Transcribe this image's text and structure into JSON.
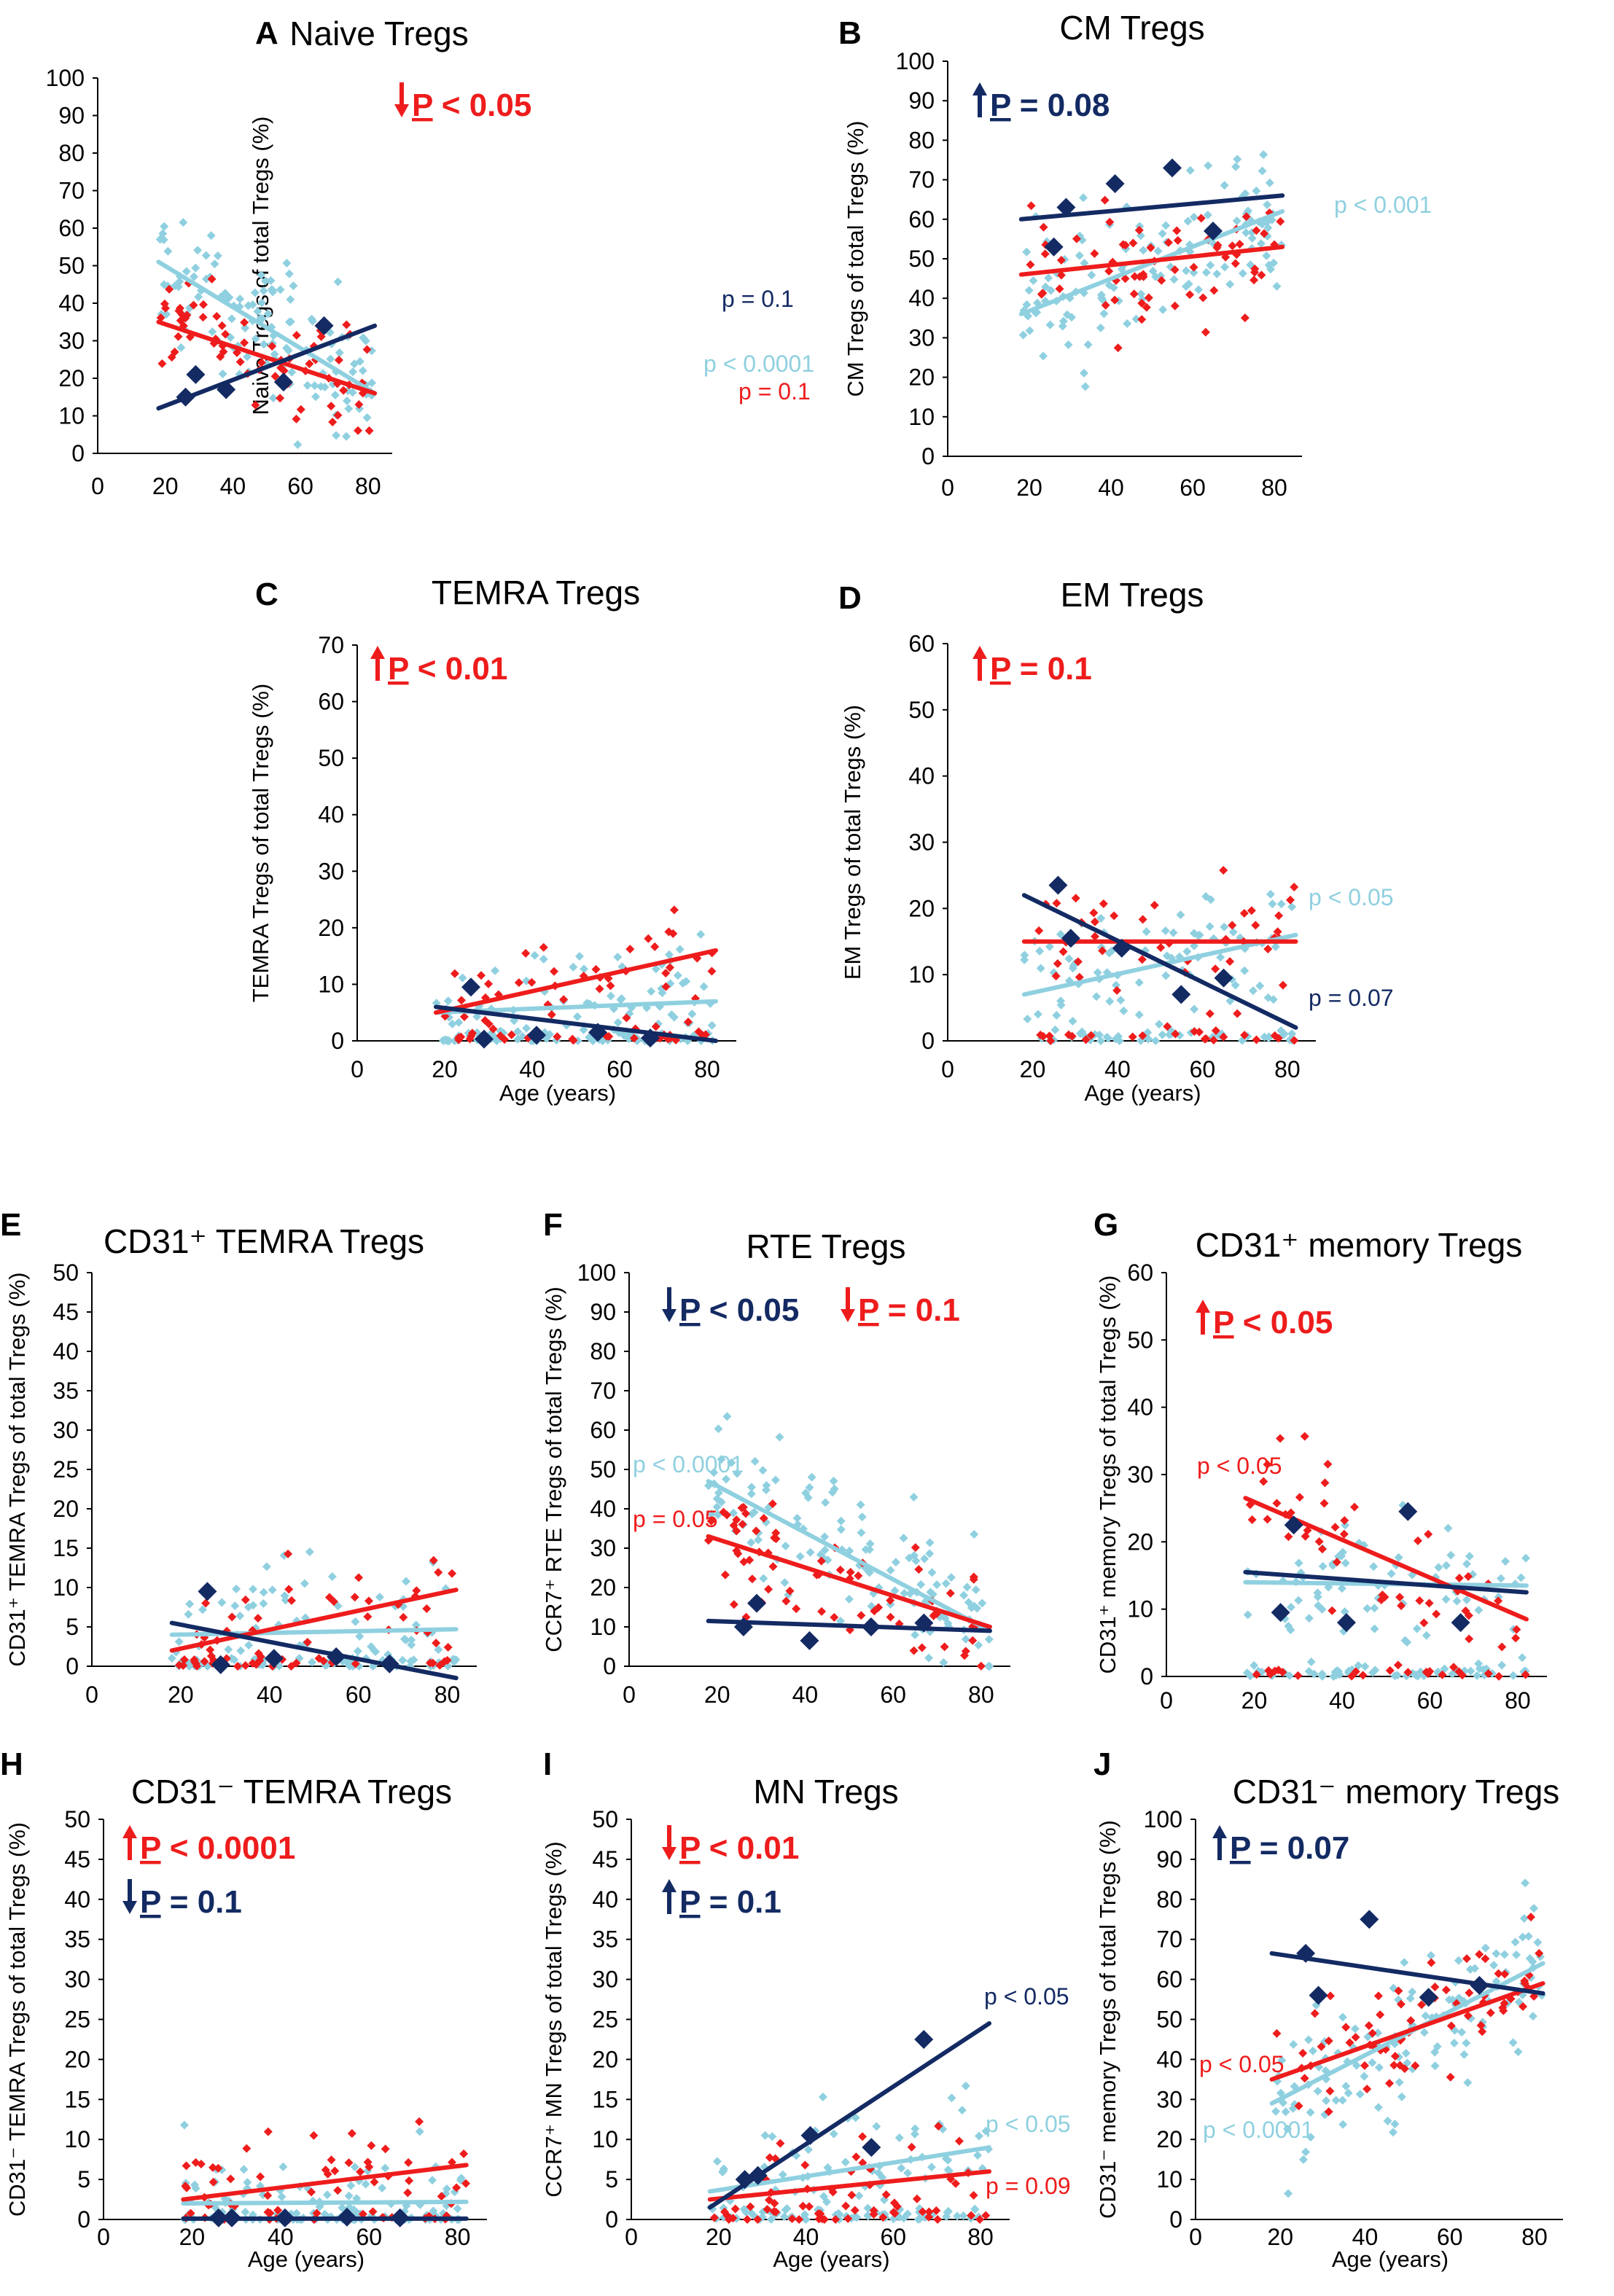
{
  "colors": {
    "red": "#ee1c1c",
    "light": "#8fd0e0",
    "navy": "#132a63",
    "axis": "#000000"
  },
  "chart_data": [
    {
      "id": "A",
      "letter": "A",
      "type": "scatter",
      "title": "Naive Tregs",
      "title_html": "",
      "ylabel": "Naive Tregs of total Tregs (%)",
      "xlabel": "",
      "xlim": [
        0,
        85
      ],
      "ylim": [
        0,
        100
      ],
      "yticks": [
        0,
        10,
        20,
        30,
        40,
        50,
        60,
        70,
        80,
        90,
        100
      ],
      "xticks": [
        0,
        20,
        40,
        60,
        80
      ],
      "series": [
        {
          "name": "navy",
          "marker": "large-diamond",
          "points": [
            [
              26,
              15
            ],
            [
              29,
              21
            ],
            [
              38,
              17
            ],
            [
              55,
              19
            ],
            [
              67,
              34
            ]
          ]
        }
      ],
      "trendlines": [
        {
          "color": "light",
          "x": [
            18,
            82
          ],
          "y": [
            51,
            16
          ]
        },
        {
          "color": "red",
          "x": [
            18,
            82
          ],
          "y": [
            35,
            16
          ]
        },
        {
          "color": "navy",
          "x": [
            18,
            82
          ],
          "y": [
            12,
            34
          ]
        }
      ],
      "annotations": [
        {
          "arrow": "down",
          "color": "red",
          "p_letter": "P",
          "rest": " < 0.05",
          "style": "big"
        },
        {
          "text": "p = 0.1",
          "color": "navy",
          "style": "small"
        },
        {
          "text": "p < 0.0001",
          "color": "light",
          "style": "small"
        },
        {
          "text": "p = 0.1",
          "color": "red",
          "style": "small"
        }
      ]
    },
    {
      "id": "B",
      "letter": "B",
      "type": "scatter",
      "title": "CM Tregs",
      "title_html": "",
      "ylabel": "CM Tregs of total Tregs (%)",
      "xlabel": "",
      "xlim": [
        0,
        85
      ],
      "ylim": [
        0,
        100
      ],
      "yticks": [
        0,
        10,
        20,
        30,
        40,
        50,
        60,
        70,
        80,
        90,
        100
      ],
      "xticks": [
        0,
        20,
        40,
        60,
        80
      ],
      "series": [
        {
          "name": "navy",
          "marker": "large-diamond",
          "points": [
            [
              26,
              53
            ],
            [
              29,
              63
            ],
            [
              41,
              69
            ],
            [
              55,
              73
            ],
            [
              65,
              57
            ]
          ]
        }
      ],
      "trendlines": [
        {
          "color": "light",
          "x": [
            18,
            82
          ],
          "y": [
            36,
            62
          ]
        },
        {
          "color": "red",
          "x": [
            18,
            82
          ],
          "y": [
            46,
            53
          ]
        },
        {
          "color": "navy",
          "x": [
            18,
            82
          ],
          "y": [
            60,
            66
          ]
        }
      ],
      "annotations": [
        {
          "arrow": "up",
          "color": "navy",
          "p_letter": "P",
          "rest": " = 0.08",
          "style": "big"
        },
        {
          "text": "p < 0.001",
          "color": "light",
          "style": "small"
        }
      ]
    },
    {
      "id": "C",
      "letter": "C",
      "type": "scatter",
      "title": "TEMRA Tregs",
      "title_html": "",
      "ylabel": "TEMRA Tregs of total Tregs (%)",
      "xlabel": "Age (years)",
      "xlim": [
        0,
        85
      ],
      "ylim": [
        0,
        70
      ],
      "yticks": [
        0,
        10,
        20,
        30,
        40,
        50,
        60,
        70
      ],
      "xticks": [
        0,
        20,
        40,
        60,
        80
      ],
      "series": [
        {
          "name": "navy",
          "marker": "large-diamond",
          "points": [
            [
              26,
              9.5
            ],
            [
              29,
              0.3
            ],
            [
              41,
              1
            ],
            [
              55,
              1.5
            ],
            [
              67,
              0.5
            ]
          ]
        }
      ],
      "trendlines": [
        {
          "color": "light",
          "x": [
            18,
            82
          ],
          "y": [
            5,
            7
          ]
        },
        {
          "color": "red",
          "x": [
            18,
            82
          ],
          "y": [
            5,
            16
          ]
        },
        {
          "color": "navy",
          "x": [
            18,
            82
          ],
          "y": [
            6,
            0
          ]
        }
      ],
      "annotations": [
        {
          "arrow": "up",
          "color": "red",
          "p_letter": "P",
          "rest": " < 0.01",
          "style": "big"
        }
      ]
    },
    {
      "id": "D",
      "letter": "D",
      "type": "scatter",
      "title": "EM Tregs",
      "title_html": "",
      "ylabel": "EM Tregs of total Tregs (%)",
      "xlabel": "Age (years)",
      "xlim": [
        0,
        85
      ],
      "ylim": [
        0,
        60
      ],
      "yticks": [
        0,
        10,
        20,
        30,
        40,
        50,
        60
      ],
      "xticks": [
        0,
        20,
        40,
        60,
        80
      ],
      "series": [
        {
          "name": "navy",
          "marker": "large-diamond",
          "points": [
            [
              26,
              23.5
            ],
            [
              29,
              15.5
            ],
            [
              41,
              14
            ],
            [
              55,
              7
            ],
            [
              65,
              9.5
            ]
          ]
        }
      ],
      "trendlines": [
        {
          "color": "light",
          "x": [
            18,
            82
          ],
          "y": [
            7,
            16
          ]
        },
        {
          "color": "red",
          "x": [
            18,
            82
          ],
          "y": [
            15,
            15
          ]
        },
        {
          "color": "navy",
          "x": [
            18,
            82
          ],
          "y": [
            22,
            2
          ]
        }
      ],
      "annotations": [
        {
          "arrow": "up",
          "color": "red",
          "p_letter": "P",
          "rest": " = 0.1",
          "style": "big"
        },
        {
          "text": "p < 0.05",
          "color": "light",
          "style": "small"
        },
        {
          "text": "p = 0.07",
          "color": "navy",
          "style": "small"
        }
      ]
    },
    {
      "id": "E",
      "letter": "E",
      "type": "scatter",
      "title": "CD31⁺ TEMRA Tregs",
      "title_html": "",
      "ylabel": "CD31⁺ TEMRA Tregs of total Tregs (%)",
      "xlabel": "",
      "xlim": [
        0,
        85
      ],
      "ylim": [
        0,
        50
      ],
      "yticks": [
        0,
        5,
        10,
        15,
        20,
        25,
        30,
        35,
        40,
        45,
        50
      ],
      "xticks": [
        0,
        20,
        40,
        60,
        80
      ],
      "series": [
        {
          "name": "navy",
          "marker": "large-diamond",
          "points": [
            [
              26,
              9.5
            ],
            [
              29,
              0.2
            ],
            [
              41,
              1
            ],
            [
              55,
              1.2
            ],
            [
              67,
              0.3
            ]
          ]
        }
      ],
      "trendlines": [
        {
          "color": "light",
          "x": [
            18,
            82
          ],
          "y": [
            4,
            4.7
          ]
        },
        {
          "color": "red",
          "x": [
            18,
            82
          ],
          "y": [
            2,
            9.7
          ]
        },
        {
          "color": "navy",
          "x": [
            18,
            82
          ],
          "y": [
            5.5,
            -1.5
          ]
        }
      ],
      "annotations": []
    },
    {
      "id": "F",
      "letter": "F",
      "type": "scatter",
      "title": "RTE Tregs",
      "title_html": "",
      "ylabel": "CCR7⁺ RTE Tregs of total Tregs (%)",
      "xlabel": "",
      "xlim": [
        0,
        85
      ],
      "ylim": [
        0,
        100
      ],
      "yticks": [
        0,
        10,
        20,
        30,
        40,
        50,
        60,
        70,
        80,
        90,
        100
      ],
      "xticks": [
        0,
        20,
        40,
        60,
        80
      ],
      "series": [
        {
          "name": "navy",
          "marker": "large-diamond",
          "points": [
            [
              26,
              10
            ],
            [
              29,
              16
            ],
            [
              41,
              6.5
            ],
            [
              55,
              10
            ],
            [
              67,
              11
            ]
          ]
        }
      ],
      "trendlines": [
        {
          "color": "light",
          "x": [
            18,
            82
          ],
          "y": [
            47,
            9
          ]
        },
        {
          "color": "red",
          "x": [
            18,
            82
          ],
          "y": [
            33,
            10
          ]
        },
        {
          "color": "navy",
          "x": [
            18,
            82
          ],
          "y": [
            11.5,
            9
          ]
        }
      ],
      "annotations": [
        {
          "arrow": "down",
          "color": "navy",
          "p_letter": "P",
          "rest": " < 0.05",
          "style": "big"
        },
        {
          "arrow": "down",
          "color": "red",
          "p_letter": "P",
          "rest": " = 0.1",
          "style": "big"
        },
        {
          "text": "p < 0.0001",
          "color": "light",
          "style": "small"
        },
        {
          "text": "p = 0.05",
          "color": "red",
          "style": "small"
        }
      ]
    },
    {
      "id": "G",
      "letter": "G",
      "type": "scatter",
      "title": "CD31⁺ memory Tregs",
      "title_html": "",
      "ylabel": "CD31⁺ memory Tregs of total Tregs (%)",
      "xlabel": "",
      "xlim": [
        0,
        85
      ],
      "ylim": [
        0,
        60
      ],
      "yticks": [
        0,
        10,
        20,
        30,
        40,
        50,
        60
      ],
      "xticks": [
        0,
        20,
        40,
        60,
        80
      ],
      "series": [
        {
          "name": "navy",
          "marker": "large-diamond",
          "points": [
            [
              26,
              9.5
            ],
            [
              29,
              22.5
            ],
            [
              41,
              8
            ],
            [
              55,
              24.5
            ],
            [
              67,
              8
            ]
          ]
        }
      ],
      "trendlines": [
        {
          "color": "light",
          "x": [
            18,
            82
          ],
          "y": [
            14,
            13.5
          ]
        },
        {
          "color": "red",
          "x": [
            18,
            82
          ],
          "y": [
            26.5,
            8.5
          ]
        },
        {
          "color": "navy",
          "x": [
            18,
            82
          ],
          "y": [
            15.5,
            12.5
          ]
        }
      ],
      "annotations": [
        {
          "arrow": "up",
          "color": "red",
          "p_letter": "P",
          "rest": " < 0.05",
          "style": "big"
        },
        {
          "text": "p < 0.05",
          "color": "red",
          "style": "small"
        }
      ]
    },
    {
      "id": "H",
      "letter": "H",
      "type": "scatter",
      "title": "CD31⁻ TEMRA Tregs",
      "title_html": "",
      "ylabel": "CD31⁻ TEMRA Tregs of total Tregs (%)",
      "xlabel": "Age (years)",
      "xlim": [
        0,
        85
      ],
      "ylim": [
        0,
        50
      ],
      "yticks": [
        0,
        5,
        10,
        15,
        20,
        25,
        30,
        35,
        40,
        45,
        50
      ],
      "xticks": [
        0,
        20,
        40,
        60,
        80
      ],
      "series": [
        {
          "name": "navy",
          "marker": "large-diamond",
          "points": [
            [
              26,
              0.2
            ],
            [
              29,
              0.2
            ],
            [
              41,
              0.2
            ],
            [
              55,
              0.3
            ],
            [
              67,
              0.2
            ]
          ]
        }
      ],
      "trendlines": [
        {
          "color": "light",
          "x": [
            18,
            82
          ],
          "y": [
            2,
            2.2
          ]
        },
        {
          "color": "red",
          "x": [
            18,
            82
          ],
          "y": [
            2.5,
            6.8
          ]
        },
        {
          "color": "navy",
          "x": [
            18,
            82
          ],
          "y": [
            0.1,
            0.1
          ]
        }
      ],
      "annotations": [
        {
          "arrow": "up",
          "color": "red",
          "p_letter": "P",
          "rest": " < 0.0001",
          "style": "big"
        },
        {
          "arrow": "down",
          "color": "navy",
          "p_letter": "P",
          "rest": " = 0.1",
          "style": "big"
        }
      ]
    },
    {
      "id": "I",
      "letter": "I",
      "type": "scatter",
      "title": "MN Tregs",
      "title_html": "",
      "ylabel": "CCR7⁺ MN Tregs of total Tregs (%)",
      "xlabel": "Age (years)",
      "xlim": [
        0,
        85
      ],
      "ylim": [
        0,
        50
      ],
      "yticks": [
        0,
        5,
        10,
        15,
        20,
        25,
        30,
        35,
        40,
        45,
        50
      ],
      "xticks": [
        0,
        20,
        40,
        60,
        80
      ],
      "series": [
        {
          "name": "navy",
          "marker": "large-diamond",
          "points": [
            [
              26,
              5
            ],
            [
              29,
              5.5
            ],
            [
              41,
              10.5
            ],
            [
              55,
              9
            ],
            [
              67,
              22.5
            ]
          ]
        }
      ],
      "trendlines": [
        {
          "color": "light",
          "x": [
            18,
            82
          ],
          "y": [
            3.5,
            9
          ]
        },
        {
          "color": "red",
          "x": [
            18,
            82
          ],
          "y": [
            2.5,
            6
          ]
        },
        {
          "color": "navy",
          "x": [
            18,
            82
          ],
          "y": [
            1.5,
            24.5
          ]
        }
      ],
      "annotations": [
        {
          "arrow": "down",
          "color": "red",
          "p_letter": "P",
          "rest": " < 0.01",
          "style": "big"
        },
        {
          "arrow": "up",
          "color": "navy",
          "p_letter": "P",
          "rest": " = 0.1",
          "style": "big"
        },
        {
          "text": "p < 0.05",
          "color": "navy",
          "style": "small"
        },
        {
          "text": "p < 0.05",
          "color": "light",
          "style": "small"
        },
        {
          "text": "p = 0.09",
          "color": "red",
          "style": "small"
        }
      ]
    },
    {
      "id": "J",
      "letter": "J",
      "type": "scatter",
      "title": "CD31⁻ memory Tregs",
      "title_html": "",
      "ylabel": "CD31⁻ memory Tregs of total Tregs (%)",
      "xlabel": "Age (years)",
      "xlim": [
        0,
        85
      ],
      "ylim": [
        0,
        100
      ],
      "yticks": [
        0,
        10,
        20,
        30,
        40,
        50,
        60,
        70,
        80,
        90,
        100
      ],
      "xticks": [
        0,
        20,
        40,
        60,
        80
      ],
      "series": [
        {
          "name": "navy",
          "marker": "large-diamond",
          "points": [
            [
              26,
              66.5
            ],
            [
              29,
              56
            ],
            [
              41,
              75
            ],
            [
              55,
              55.5
            ],
            [
              67,
              58.5
            ]
          ]
        }
      ],
      "trendlines": [
        {
          "color": "light",
          "x": [
            18,
            82
          ],
          "y": [
            29,
            64
          ]
        },
        {
          "color": "red",
          "x": [
            18,
            82
          ],
          "y": [
            35,
            59
          ]
        },
        {
          "color": "navy",
          "x": [
            18,
            82
          ],
          "y": [
            66.5,
            56.5
          ]
        }
      ],
      "annotations": [
        {
          "arrow": "up",
          "color": "navy",
          "p_letter": "P",
          "rest": " = 0.07",
          "style": "big"
        },
        {
          "text": "p < 0.05",
          "color": "red",
          "style": "small"
        },
        {
          "text": "p < 0.0001",
          "color": "light",
          "style": "small"
        }
      ]
    }
  ]
}
